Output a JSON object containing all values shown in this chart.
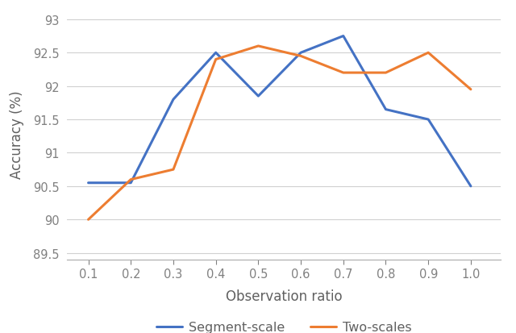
{
  "x": [
    0.1,
    0.2,
    0.3,
    0.4,
    0.5,
    0.6,
    0.7,
    0.8,
    0.9,
    1.0
  ],
  "segment_scale": [
    90.55,
    90.55,
    91.8,
    92.5,
    91.85,
    92.5,
    92.75,
    91.65,
    91.5,
    90.5
  ],
  "two_scales": [
    90.0,
    90.6,
    90.75,
    92.4,
    92.6,
    92.45,
    92.2,
    92.2,
    92.5,
    91.95
  ],
  "segment_color": "#4472C4",
  "two_scales_color": "#ED7D31",
  "xlabel": "Observation ratio",
  "ylabel": "Accuracy (%)",
  "ylim": [
    89.4,
    93.15
  ],
  "yticks": [
    89.5,
    90.0,
    90.5,
    91.0,
    91.5,
    92.0,
    92.5,
    93.0
  ],
  "ytick_labels": [
    "89.5",
    "90",
    "90.5",
    "91",
    "91.5",
    "92",
    "92.5",
    "93"
  ],
  "xticks": [
    0.1,
    0.2,
    0.3,
    0.4,
    0.5,
    0.6,
    0.7,
    0.8,
    0.9,
    1.0
  ],
  "xtick_labels": [
    "0.1",
    "0.2",
    "0.3",
    "0.4",
    "0.5",
    "0.6",
    "0.7",
    "0.8",
    "0.9",
    "1.0"
  ],
  "legend_segment": "Segment-scale",
  "legend_two": "Two-scales",
  "line_width": 2.2,
  "tick_color": "#808080",
  "label_color": "#606060",
  "grid_color": "#d0d0d0",
  "spine_color": "#aaaaaa"
}
